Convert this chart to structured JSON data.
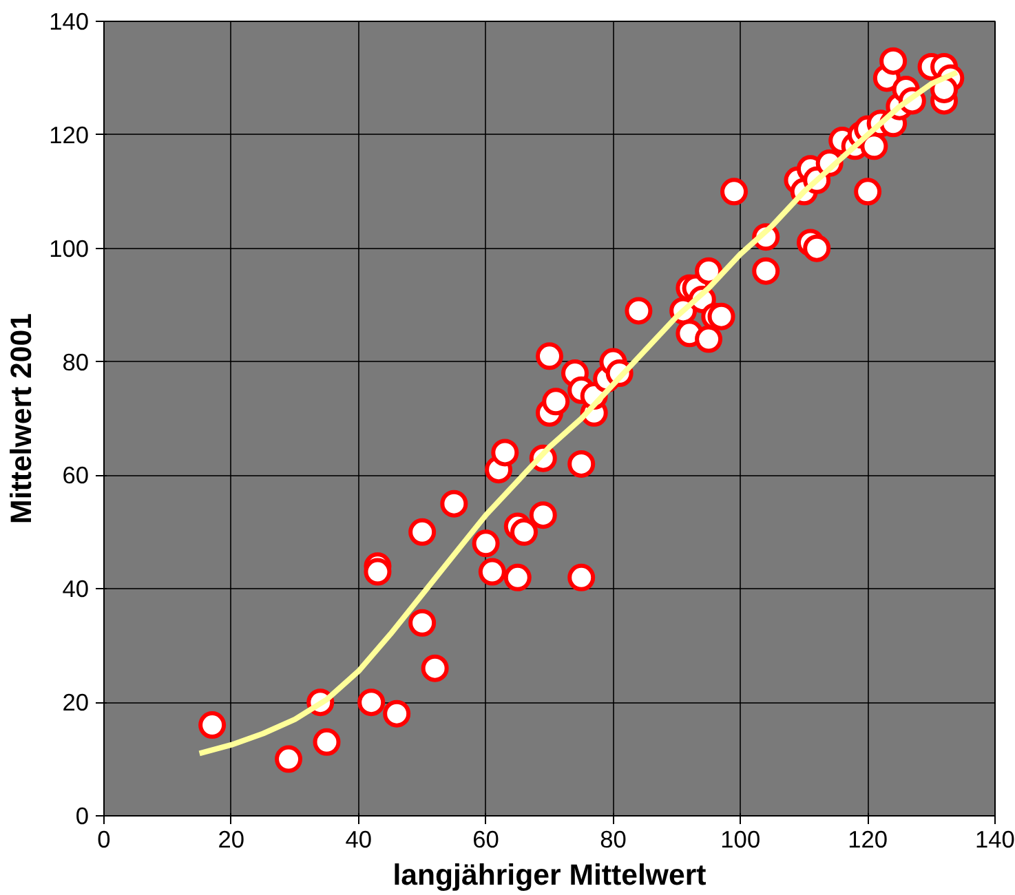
{
  "chart_data": {
    "type": "scatter",
    "xlabel": "langjähriger Mittelwert",
    "ylabel": "Mittelwert 2001",
    "xlim": [
      0,
      140
    ],
    "ylim": [
      0,
      140
    ],
    "xticks": [
      0,
      20,
      40,
      60,
      80,
      100,
      120,
      140
    ],
    "yticks": [
      0,
      20,
      40,
      60,
      80,
      100,
      120,
      140
    ],
    "grid": true,
    "series": [
      {
        "color": "#ff0000",
        "marker": "circle",
        "x": [
          17,
          29,
          34,
          35,
          42,
          43,
          43,
          46,
          50,
          50,
          52,
          55,
          60,
          61,
          62,
          63,
          65,
          65,
          66,
          69,
          69,
          70,
          70,
          71,
          74,
          75,
          75,
          75,
          77,
          77,
          79,
          80,
          81,
          84,
          91,
          92,
          92,
          93,
          94,
          95,
          95,
          96,
          97,
          99,
          104,
          104,
          109,
          110,
          111,
          111,
          112,
          112,
          114,
          116,
          118,
          119,
          120,
          120,
          121,
          122,
          123,
          124,
          124,
          125,
          126,
          127,
          130,
          132,
          132,
          133,
          132
        ],
        "values": [
          16,
          10,
          20,
          13,
          20,
          44,
          43,
          18,
          50,
          34,
          26,
          55,
          48,
          43,
          61,
          64,
          51,
          42,
          50,
          53,
          63,
          71,
          81,
          73,
          78,
          75,
          62,
          42,
          71,
          74,
          77,
          80,
          78,
          89,
          89,
          93,
          85,
          93,
          91,
          96,
          84,
          88,
          88,
          110,
          102,
          96,
          112,
          110,
          114,
          101,
          112,
          100,
          115,
          119,
          118,
          120,
          110,
          121,
          118,
          122,
          130,
          133,
          122,
          125,
          128,
          126,
          132,
          132,
          126,
          130,
          128
        ]
      },
      {
        "type": "line",
        "color": "#ffff99",
        "x": [
          15,
          20,
          25,
          30,
          35,
          40,
          45,
          50,
          55,
          60,
          65,
          70,
          75,
          80,
          85,
          90,
          95,
          100,
          105,
          110,
          115,
          120,
          125,
          130,
          134
        ],
        "values": [
          11,
          12.5,
          14.5,
          17,
          20.5,
          25.5,
          32,
          39,
          46,
          53,
          59,
          65,
          70,
          76,
          82,
          88,
          93,
          99,
          104,
          110,
          115,
          120,
          125,
          129,
          131
        ]
      }
    ]
  }
}
